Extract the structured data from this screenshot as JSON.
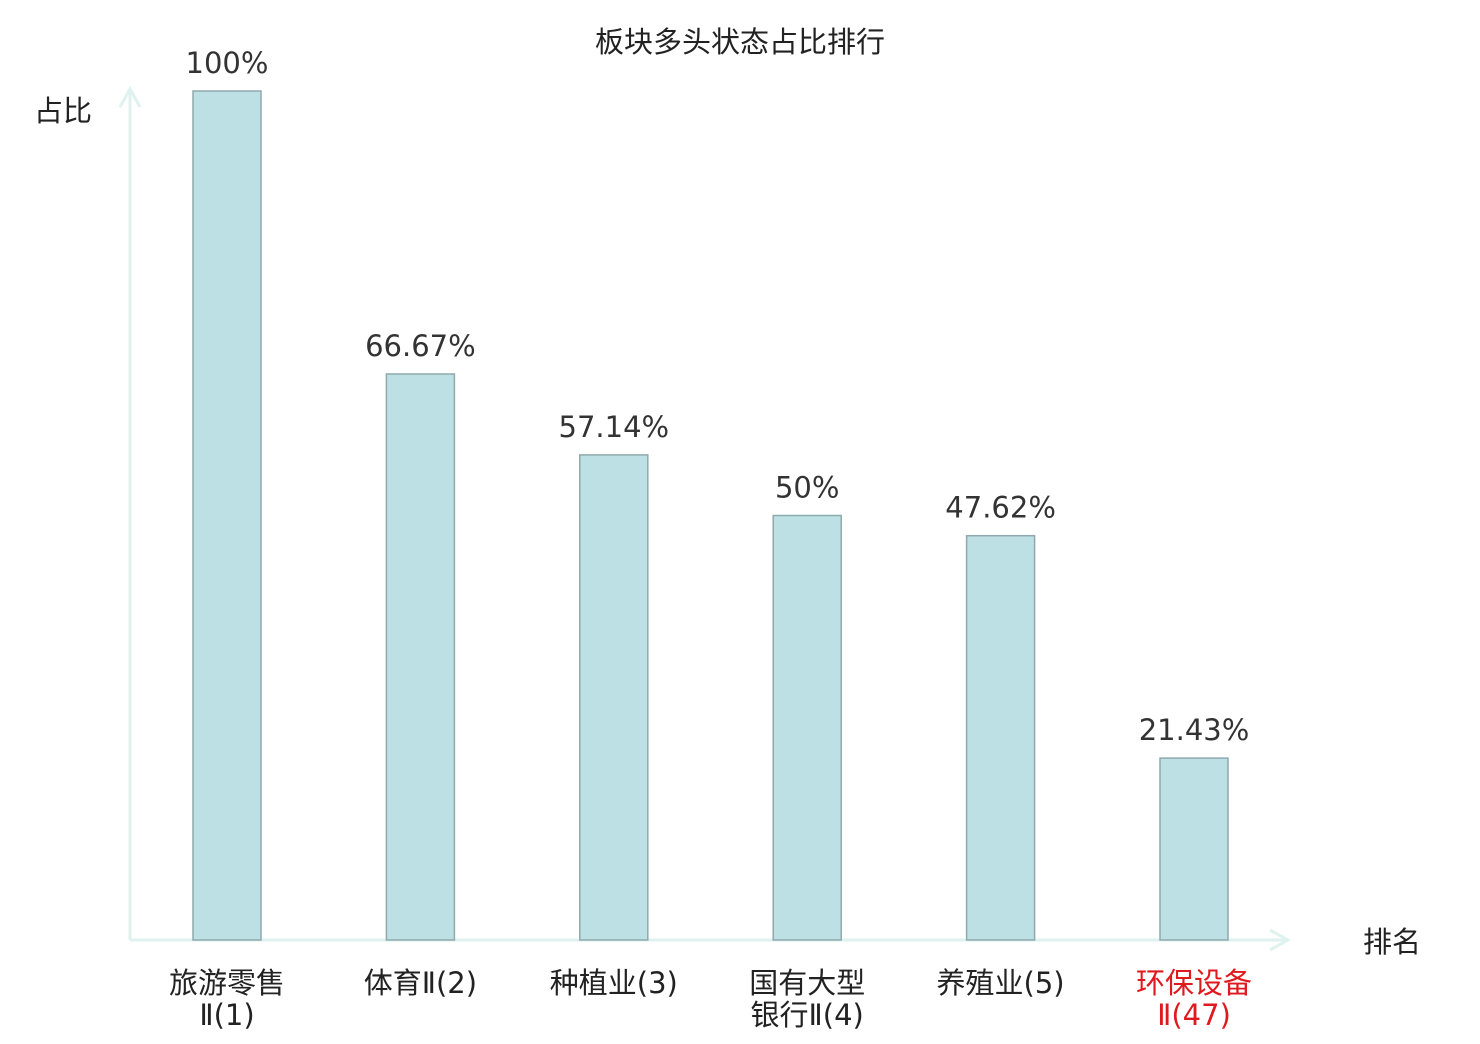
{
  "chart_data": {
    "type": "bar",
    "title": "板块多头状态占比排行",
    "ylabel": "占比",
    "xlabel": "排名",
    "categories": [
      {
        "line1": "旅游零售",
        "line2": "Ⅱ(1)",
        "highlight": false
      },
      {
        "line1": "体育Ⅱ(2)",
        "line2": "",
        "highlight": false
      },
      {
        "line1": "种植业(3)",
        "line2": "",
        "highlight": false
      },
      {
        "line1": "国有大型",
        "line2": "银行Ⅱ(4)",
        "highlight": false
      },
      {
        "line1": "养殖业(5)",
        "line2": "",
        "highlight": false
      },
      {
        "line1": "环保设备",
        "line2": "Ⅱ(47)",
        "highlight": true
      }
    ],
    "values": [
      100,
      66.67,
      57.14,
      50,
      47.62,
      21.43
    ],
    "value_labels": [
      "100%",
      "66.67%",
      "57.14%",
      "50%",
      "47.62%",
      "21.43%"
    ],
    "ylim": [
      0,
      100
    ],
    "grid": false,
    "legend": "none",
    "colors": {
      "bar_fill": "#bce0e3",
      "bar_stroke": "#8fa9ad",
      "axis": "#dff2ef",
      "text": "#222222",
      "value_text": "#333333",
      "highlight_text": "#e0191e"
    }
  }
}
